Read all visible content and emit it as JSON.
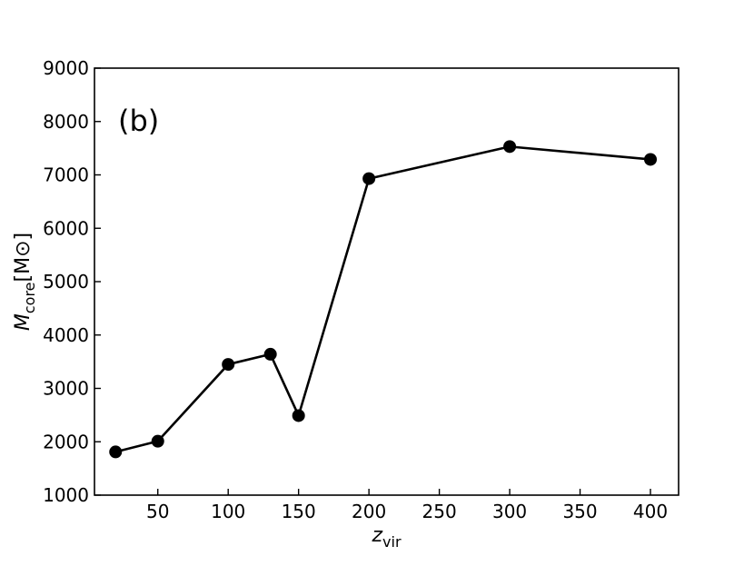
{
  "chart_data": {
    "type": "line",
    "panel_label": "(b)",
    "xlabel": {
      "symbol": "z",
      "subscript": "vir"
    },
    "ylabel": {
      "symbol": "M",
      "subscript": "core",
      "unit": "[M⊙]"
    },
    "xlim": [
      5,
      420
    ],
    "ylim": [
      1000,
      9000
    ],
    "xticks": [
      50,
      100,
      150,
      200,
      250,
      300,
      350,
      400
    ],
    "yticks": [
      1000,
      2000,
      3000,
      4000,
      5000,
      6000,
      7000,
      8000,
      9000
    ],
    "grid": false,
    "x": [
      20,
      50,
      100,
      130,
      150,
      200,
      300,
      400
    ],
    "y": [
      1810,
      2010,
      3450,
      3640,
      2490,
      6930,
      7530,
      7290
    ],
    "color": "#000000"
  }
}
